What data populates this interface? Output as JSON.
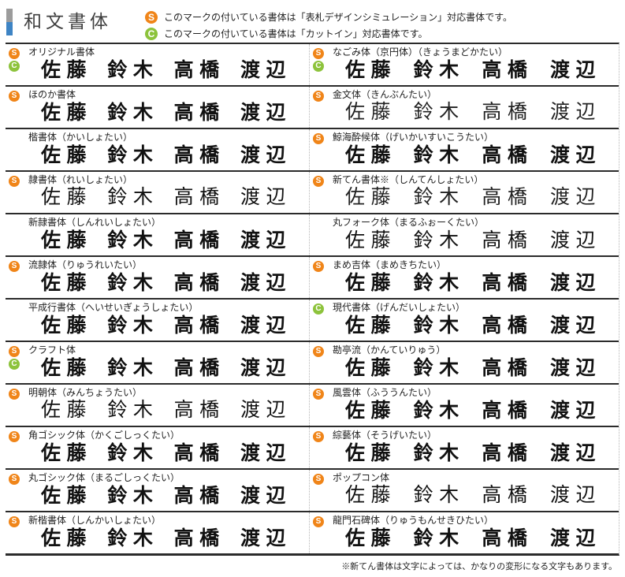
{
  "page": {
    "title": "和文書体",
    "legend": [
      {
        "badge": "S",
        "text": "このマークの付いている書体は「表札デザインシミュレーション」対応書体です。"
      },
      {
        "badge": "C",
        "text": "このマークの付いている書体は「カットイン」対応書体です。"
      }
    ],
    "footnote": "※新てん書体は文字によっては、かなりの変形になる文字もあります。"
  },
  "colors": {
    "badge_s": "#F08519",
    "badge_c": "#8DC33C",
    "accent_bar_top": "#9C9C9C",
    "accent_bar_bottom": "#3E84C4",
    "rule": "#2B2B2B",
    "dotted_rule": "#B5B5B5"
  },
  "sample_names": [
    "佐藤",
    "鈴木",
    "高橋",
    "渡辺"
  ],
  "table": {
    "rows": [
      {
        "left": {
          "label": "オリジナル書体",
          "badges": [
            "S",
            "C"
          ],
          "style": "brush"
        },
        "right": {
          "label": "なごみ体（京円体）（きょうまどかたい）",
          "badges": [
            "S",
            "C"
          ],
          "style": "brush"
        }
      },
      {
        "left": {
          "label": "ほのか書体",
          "badges": [
            "S"
          ],
          "style": "brush"
        },
        "right": {
          "label": "金文体（きんぶんたい）",
          "badges": [
            "S"
          ],
          "style": "seal"
        }
      },
      {
        "left": {
          "label": "楷書体（かいしょたい）",
          "badges": [],
          "style": "brush"
        },
        "right": {
          "label": "鯨海酔候体（げいかいすいこうたい）",
          "badges": [
            "S"
          ],
          "style": "brush"
        }
      },
      {
        "left": {
          "label": "隷書体（れいしょたい）",
          "badges": [
            "S"
          ],
          "style": "mincho"
        },
        "right": {
          "label": "新てん書体※（しんてんしょたい）",
          "badges": [
            "S"
          ],
          "style": "seal"
        }
      },
      {
        "left": {
          "label": "新隷書体（しんれいしょたい）",
          "badges": [],
          "style": "brush"
        },
        "right": {
          "label": "丸フォーク体（まるふぉーくたい）",
          "badges": [],
          "style": "round-light"
        }
      },
      {
        "left": {
          "label": "流隷体（りゅうれいたい）",
          "badges": [
            "S"
          ],
          "style": "brush"
        },
        "right": {
          "label": "まめ吉体（まめきちたい）",
          "badges": [
            "S"
          ],
          "style": "brush"
        }
      },
      {
        "left": {
          "label": "平成行書体（へいせいぎょうしょたい）",
          "badges": [],
          "style": "brush"
        },
        "right": {
          "label": "現代書体（げんだいしょたい）",
          "badges": [
            "C"
          ],
          "style": "brush"
        }
      },
      {
        "left": {
          "label": "クラフト体",
          "badges": [
            "S",
            "C"
          ],
          "style": "brush"
        },
        "right": {
          "label": "勘亭流（かんていりゅう）",
          "badges": [
            "S"
          ],
          "style": "brush"
        }
      },
      {
        "left": {
          "label": "明朝体（みんちょうたい）",
          "badges": [
            "S"
          ],
          "style": "mincho"
        },
        "right": {
          "label": "風雲体（ふううんたい）",
          "badges": [
            "S"
          ],
          "style": "heavy"
        }
      },
      {
        "left": {
          "label": "角ゴシック体（かくごしっくたい）",
          "badges": [
            "S"
          ],
          "style": "gothic"
        },
        "right": {
          "label": "綜藝体（そうげいたい）",
          "badges": [
            "S"
          ],
          "style": "heavy"
        }
      },
      {
        "left": {
          "label": "丸ゴシック体（まるごしっくたい）",
          "badges": [
            "S"
          ],
          "style": "round"
        },
        "right": {
          "label": "ポップコン体",
          "badges": [
            "S"
          ],
          "style": "mincho"
        }
      },
      {
        "left": {
          "label": "新楷書体（しんかいしょたい）",
          "badges": [
            "S"
          ],
          "style": "brush"
        },
        "right": {
          "label": "龍門石碑体（りゅうもんせきひたい）",
          "badges": [
            "S"
          ],
          "style": "brush"
        }
      }
    ]
  }
}
